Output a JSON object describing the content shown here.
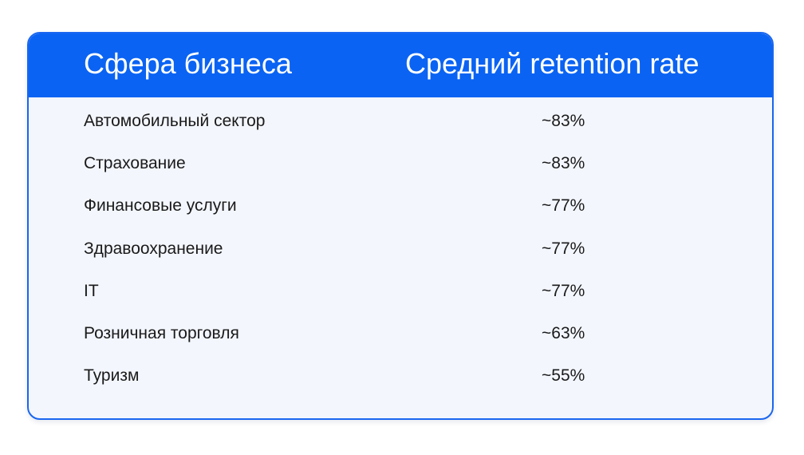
{
  "table": {
    "headers": [
      "Сфера бизнеса",
      "Средний retention rate"
    ],
    "rows": [
      {
        "sector": "Автомобильный сектор",
        "rate": "~83%"
      },
      {
        "sector": "Страхование",
        "rate": "~83%"
      },
      {
        "sector": "Финансовые услуги",
        "rate": "~77%"
      },
      {
        "sector": "Здравоохранение",
        "rate": "~77%"
      },
      {
        "sector": "IT",
        "rate": "~77%"
      },
      {
        "sector": "Розничная торговля",
        "rate": "~63%"
      },
      {
        "sector": "Туризм",
        "rate": "~55%"
      }
    ]
  },
  "colors": {
    "header_bg": "#0a63f3",
    "border": "#1a66f0",
    "body_bg": "#f3f6fd",
    "text": "#1a1a1a",
    "header_text": "#ffffff"
  }
}
